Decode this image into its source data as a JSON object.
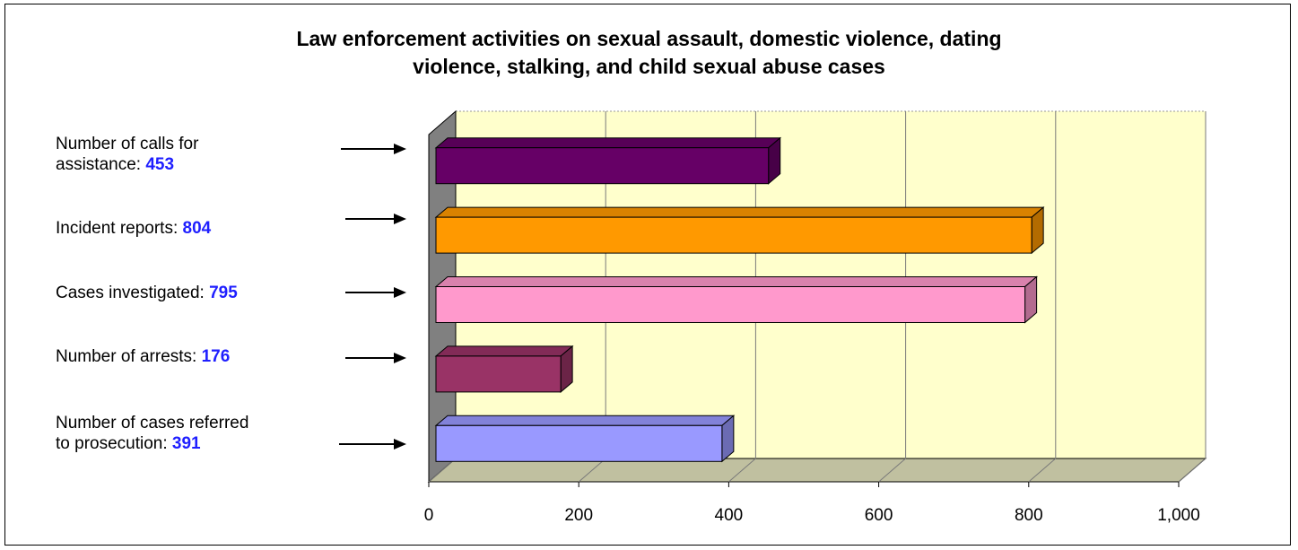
{
  "title_line1": "Law enforcement activities on sexual assault, domestic violence, dating",
  "title_line2": "violence, stalking, and child sexual abuse cases",
  "labels": [
    {
      "text_line1": "Number of calls for",
      "text_line2": "assistance: ",
      "value": "453"
    },
    {
      "text_line1": "Incident reports: ",
      "value": "804"
    },
    {
      "text_line1": "Cases investigated: ",
      "value": "795"
    },
    {
      "text_line1": "Number of arrests: ",
      "value": "176"
    },
    {
      "text_line1": "Number of cases referred",
      "text_line2": "to prosecution: ",
      "value": "391"
    }
  ],
  "chart_data": {
    "type": "bar",
    "orientation": "horizontal",
    "title": "Law enforcement activities on sexual assault, domestic violence, dating violence, stalking, and child sexual abuse cases",
    "categories": [
      "Number of calls for assistance",
      "Incident reports",
      "Cases investigated",
      "Number of arrests",
      "Number of cases referred to prosecution"
    ],
    "values": [
      453,
      804,
      795,
      176,
      391
    ],
    "colors": [
      "#660066",
      "#ff9900",
      "#ff99cc",
      "#993366",
      "#9999ff"
    ],
    "xlim": [
      0,
      1000
    ],
    "ticks": [
      0,
      200,
      400,
      600,
      800,
      1000
    ],
    "tick_labels": [
      "0",
      "200",
      "400",
      "600",
      "800",
      "1,000"
    ],
    "plot_background": "#ffffcc",
    "floor_color": "#c0c0a0",
    "wall_color": "#808080",
    "grid": true,
    "style": "3d"
  }
}
